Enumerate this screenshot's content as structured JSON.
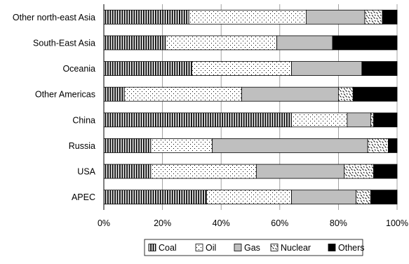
{
  "chart_data": {
    "type": "bar",
    "orientation": "horizontal",
    "stacked": true,
    "percent": true,
    "categories": [
      "Other north-east Asia",
      "South-East Asia",
      "Oceania",
      "Other Americas",
      "China",
      "Russia",
      "USA",
      "APEC"
    ],
    "series": [
      {
        "name": "Coal",
        "pattern": "vertical-stripes",
        "values": [
          29,
          21,
          30,
          7,
          64,
          16,
          16,
          35
        ]
      },
      {
        "name": "Oil",
        "pattern": "dots",
        "values": [
          40,
          38,
          34,
          40,
          19,
          21,
          36,
          29
        ]
      },
      {
        "name": "Gas",
        "pattern": "solid-gray",
        "color": "#bfbfbf",
        "values": [
          20,
          19,
          24,
          33,
          8,
          53,
          30,
          22
        ]
      },
      {
        "name": "Nuclear",
        "pattern": "scattered-dashes",
        "values": [
          6,
          0,
          0,
          5,
          1,
          7,
          10,
          5
        ]
      },
      {
        "name": "Others",
        "pattern": "solid-black",
        "color": "#000000",
        "values": [
          5,
          22,
          12,
          15,
          8,
          3,
          8,
          9
        ]
      }
    ],
    "xlim": [
      0,
      100
    ],
    "x_ticks": [
      "0%",
      "20%",
      "40%",
      "60%",
      "80%",
      "100%"
    ],
    "grid": "vertical",
    "legend": "bottom"
  }
}
